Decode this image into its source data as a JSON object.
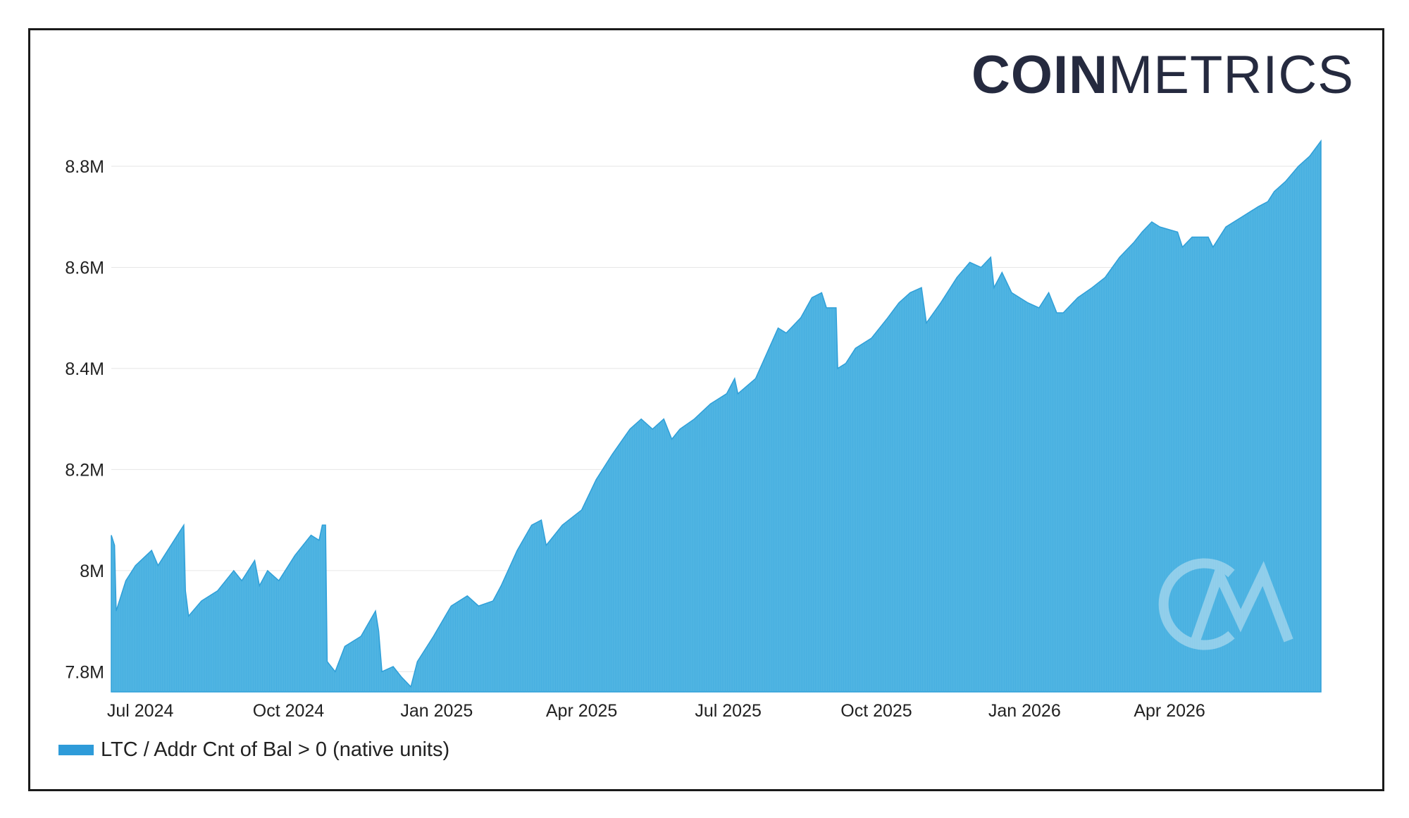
{
  "brand": {
    "bold": "COIN",
    "light": "METRICS",
    "watermark": "CM"
  },
  "colors": {
    "series": "#4fb4e2",
    "series_stroke": "#2f9fd8",
    "grid": "#e6e6e6",
    "legend": "#2e9bd9"
  },
  "chart_data": {
    "type": "area",
    "title": "",
    "xlabel": "",
    "ylabel": "",
    "x_range": [
      "2024-06-13",
      "2026-07-04"
    ],
    "ylim": [
      7.76,
      8.86
    ],
    "y_unit": "M",
    "grid": true,
    "legend_placement": "bottom-left",
    "y_ticks": [
      {
        "value": 7.8,
        "label": "7.8M"
      },
      {
        "value": 8.0,
        "label": "8M"
      },
      {
        "value": 8.2,
        "label": "8.2M"
      },
      {
        "value": 8.4,
        "label": "8.4M"
      },
      {
        "value": 8.6,
        "label": "8.6M"
      },
      {
        "value": 8.8,
        "label": "8.8M"
      }
    ],
    "x_ticks": [
      {
        "date": "2024-07-01",
        "label": "Jul 2024"
      },
      {
        "date": "2024-10-01",
        "label": "Oct 2024"
      },
      {
        "date": "2025-01-01",
        "label": "Jan 2025"
      },
      {
        "date": "2025-04-01",
        "label": "Apr 2025"
      },
      {
        "date": "2025-07-01",
        "label": "Jul 2025"
      },
      {
        "date": "2025-10-01",
        "label": "Oct 2025"
      },
      {
        "date": "2026-01-01",
        "label": "Jan 2026"
      },
      {
        "date": "2026-04-01",
        "label": "Apr 2026"
      }
    ],
    "series": [
      {
        "name": "LTC / Addr Cnt of Bal > 0 (native units)",
        "points": [
          [
            "2024-06-13",
            8.07
          ],
          [
            "2024-06-15",
            8.05
          ],
          [
            "2024-06-16",
            7.92
          ],
          [
            "2024-06-22",
            7.98
          ],
          [
            "2024-06-28",
            8.01
          ],
          [
            "2024-07-08",
            8.04
          ],
          [
            "2024-07-12",
            8.01
          ],
          [
            "2024-07-22",
            8.06
          ],
          [
            "2024-07-28",
            8.09
          ],
          [
            "2024-07-29",
            7.96
          ],
          [
            "2024-07-31",
            7.91
          ],
          [
            "2024-08-08",
            7.94
          ],
          [
            "2024-08-18",
            7.96
          ],
          [
            "2024-08-28",
            8.0
          ],
          [
            "2024-09-02",
            7.98
          ],
          [
            "2024-09-10",
            8.02
          ],
          [
            "2024-09-13",
            7.97
          ],
          [
            "2024-09-18",
            8.0
          ],
          [
            "2024-09-25",
            7.98
          ],
          [
            "2024-10-05",
            8.03
          ],
          [
            "2024-10-15",
            8.07
          ],
          [
            "2024-10-20",
            8.06
          ],
          [
            "2024-10-22",
            8.09
          ],
          [
            "2024-10-24",
            8.09
          ],
          [
            "2024-10-25",
            7.82
          ],
          [
            "2024-10-30",
            7.8
          ],
          [
            "2024-11-05",
            7.85
          ],
          [
            "2024-11-15",
            7.87
          ],
          [
            "2024-11-24",
            7.92
          ],
          [
            "2024-11-26",
            7.88
          ],
          [
            "2024-11-28",
            7.8
          ],
          [
            "2024-12-05",
            7.81
          ],
          [
            "2024-12-10",
            7.79
          ],
          [
            "2024-12-16",
            7.77
          ],
          [
            "2024-12-20",
            7.82
          ],
          [
            "2024-12-30",
            7.87
          ],
          [
            "2025-01-10",
            7.93
          ],
          [
            "2025-01-20",
            7.95
          ],
          [
            "2025-01-27",
            7.93
          ],
          [
            "2025-02-05",
            7.94
          ],
          [
            "2025-02-10",
            7.97
          ],
          [
            "2025-02-20",
            8.04
          ],
          [
            "2025-03-01",
            8.09
          ],
          [
            "2025-03-07",
            8.1
          ],
          [
            "2025-03-10",
            8.05
          ],
          [
            "2025-03-20",
            8.09
          ],
          [
            "2025-04-01",
            8.12
          ],
          [
            "2025-04-10",
            8.18
          ],
          [
            "2025-04-20",
            8.23
          ],
          [
            "2025-05-01",
            8.28
          ],
          [
            "2025-05-08",
            8.3
          ],
          [
            "2025-05-15",
            8.28
          ],
          [
            "2025-05-22",
            8.3
          ],
          [
            "2025-05-27",
            8.26
          ],
          [
            "2025-06-01",
            8.28
          ],
          [
            "2025-06-10",
            8.3
          ],
          [
            "2025-06-20",
            8.33
          ],
          [
            "2025-06-30",
            8.35
          ],
          [
            "2025-07-05",
            8.38
          ],
          [
            "2025-07-07",
            8.35
          ],
          [
            "2025-07-18",
            8.38
          ],
          [
            "2025-07-25",
            8.43
          ],
          [
            "2025-08-01",
            8.48
          ],
          [
            "2025-08-06",
            8.47
          ],
          [
            "2025-08-15",
            8.5
          ],
          [
            "2025-08-22",
            8.54
          ],
          [
            "2025-08-28",
            8.55
          ],
          [
            "2025-08-31",
            8.52
          ],
          [
            "2025-09-06",
            8.52
          ],
          [
            "2025-09-07",
            8.4
          ],
          [
            "2025-09-12",
            8.41
          ],
          [
            "2025-09-18",
            8.44
          ],
          [
            "2025-09-28",
            8.46
          ],
          [
            "2025-10-08",
            8.5
          ],
          [
            "2025-10-15",
            8.53
          ],
          [
            "2025-10-22",
            8.55
          ],
          [
            "2025-10-29",
            8.56
          ],
          [
            "2025-11-01",
            8.49
          ],
          [
            "2025-11-10",
            8.53
          ],
          [
            "2025-11-20",
            8.58
          ],
          [
            "2025-11-28",
            8.61
          ],
          [
            "2025-12-05",
            8.6
          ],
          [
            "2025-12-11",
            8.62
          ],
          [
            "2025-12-13",
            8.56
          ],
          [
            "2025-12-18",
            8.59
          ],
          [
            "2025-12-24",
            8.55
          ],
          [
            "2026-01-03",
            8.53
          ],
          [
            "2026-01-10",
            8.52
          ],
          [
            "2026-01-16",
            8.55
          ],
          [
            "2026-01-21",
            8.51
          ],
          [
            "2026-01-25",
            8.51
          ],
          [
            "2026-02-03",
            8.54
          ],
          [
            "2026-02-12",
            8.56
          ],
          [
            "2026-02-20",
            8.58
          ],
          [
            "2026-03-01",
            8.62
          ],
          [
            "2026-03-10",
            8.65
          ],
          [
            "2026-03-15",
            8.67
          ],
          [
            "2026-03-21",
            8.69
          ],
          [
            "2026-03-26",
            8.68
          ],
          [
            "2026-04-06",
            8.67
          ],
          [
            "2026-04-09",
            8.64
          ],
          [
            "2026-04-15",
            8.66
          ],
          [
            "2026-04-25",
            8.66
          ],
          [
            "2026-04-28",
            8.64
          ],
          [
            "2026-05-06",
            8.68
          ],
          [
            "2026-05-16",
            8.7
          ],
          [
            "2026-05-26",
            8.72
          ],
          [
            "2026-06-01",
            8.73
          ],
          [
            "2026-06-05",
            8.75
          ],
          [
            "2026-06-12",
            8.77
          ],
          [
            "2026-06-20",
            8.8
          ],
          [
            "2026-06-27",
            8.82
          ],
          [
            "2026-07-04",
            8.85
          ]
        ]
      }
    ]
  },
  "legend": {
    "label": "LTC / Addr Cnt of Bal > 0 (native units)"
  }
}
